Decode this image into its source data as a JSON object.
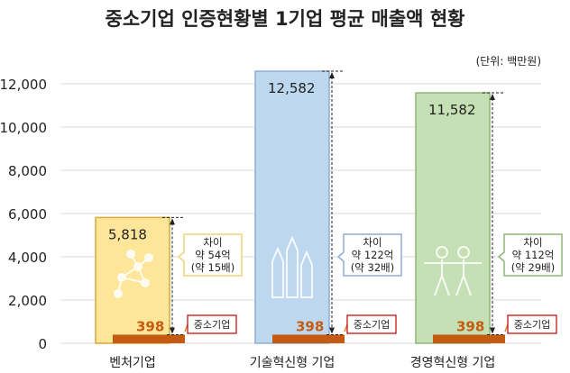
{
  "chart_data": {
    "type": "bar",
    "title": "중소기업 인증현황별 1기업 평균 매출액 현황",
    "unit_label": "(단위: 백만원)",
    "ylim": [
      0,
      12000
    ],
    "yticks": [
      0,
      2000,
      4000,
      6000,
      8000,
      10000,
      12000
    ],
    "ytick_labels": [
      "0",
      "2,000",
      "4,000",
      "6,000",
      "8,000",
      "10,000",
      "12,000"
    ],
    "grid": true,
    "categories": [
      "벤처기업",
      "기술혁신형 기업",
      "경영혁신형 기업"
    ],
    "series": [
      {
        "values": [
          5818,
          12582,
          11582
        ],
        "labels": [
          "5,818",
          "12,582",
          "11,582"
        ],
        "colors": [
          "#fde59a",
          "#bdd7ee",
          "#c5e0b4"
        ],
        "borders": [
          "#d9a93a",
          "#8eaed3",
          "#8fb57a"
        ]
      },
      {
        "name": "중소기업",
        "values": [
          398,
          398,
          398
        ],
        "labels": [
          "398",
          "398",
          "398"
        ],
        "color": "#c55a11"
      }
    ],
    "annotations": [
      {
        "lines": [
          "차이",
          "약 54억",
          "(약 15배)"
        ],
        "border": "#f2d27a"
      },
      {
        "lines": [
          "차이",
          "약 122억",
          "(약 32배)"
        ],
        "border": "#8eaed3"
      },
      {
        "lines": [
          "차이",
          "약 112억",
          "(약 29배)"
        ],
        "border": "#8fb57a"
      }
    ],
    "callout_label": "중소기업",
    "icons": [
      "molecule-icon",
      "pencils-icon",
      "people-icon"
    ]
  }
}
